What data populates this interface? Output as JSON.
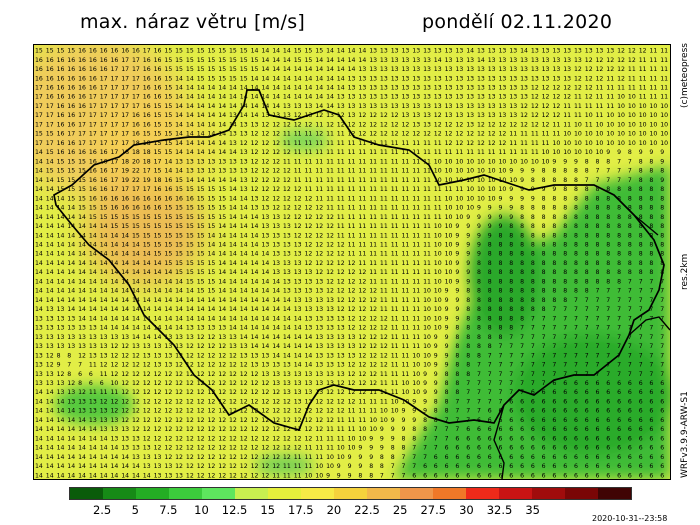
{
  "header": {
    "title": "max. náraz větru [m/s]",
    "date": "pondělí 02.11.2020"
  },
  "side_labels": {
    "copyright": "(c)meteopress",
    "resolution": "res.2km",
    "model": "WRFv3.9.9-ARW-S1"
  },
  "colorbar": {
    "colors": [
      "#0a5c0a",
      "#168a16",
      "#24ad24",
      "#3ccc3c",
      "#5ee65e",
      "#c8f050",
      "#e6f03c",
      "#f7ea46",
      "#f5d23c",
      "#f2b84a",
      "#f0964a",
      "#f07828",
      "#ee2a1a",
      "#c81414",
      "#a00c0c",
      "#7a0606",
      "#400404"
    ],
    "ticks": [
      "2.5",
      "5",
      "7.5",
      "10",
      "12.5",
      "15",
      "17.5",
      "20",
      "22.5",
      "25",
      "27.5",
      "30",
      "32.5",
      "35"
    ]
  },
  "run_timestamp": "2020-10-31--23:58",
  "map": {
    "field_colors": {
      "low": "#2db52d",
      "mid": "#e0ee44",
      "high": "#f2b860",
      "border": "#000000",
      "number": "#000000"
    },
    "grid_values_rows": [
      "15 15 15 15 16 16 16 16 16 16 17 16 15 15 15 15 15 15 15 15 14 14 14 14 15 15 15 14 14 14 14 13 13 13 13 13 13 13 13 13 14 13 13 13 13 14 13 13 13 13 13 13 13 13 12 12 12 11 11",
      "16 16 16 16 16 16 16 16 17 17 16 16 15 15 15 15 15 15 15 15 15 14 14 14 15 15 14 14 14 14 14 13 13 13 13 13 13 14 13 13 13 14 13 13 13 13 13 13 13 13 13 12 12 12 12 12 11 11 11",
      "16 16 16 16 16 16 16 17 17 17 16 16 15 15 15 15 15 15 15 15 15 14 14 14 14 14 14 14 14 14 13 13 13 13 13 13 13 13 13 13 13 13 13 13 13 13 13 13 13 13 12 12 12 12 12 11 11 11 11",
      "16 16 16 16 16 16 17 17 17 17 16 16 15 14 14 15 15 15 15 15 14 14 14 14 14 14 14 14 14 13 13 13 13 13 13 13 13 13 13 13 13 13 13 13 13 13 13 13 13 13 12 12 12 11 12 11 11 11 11",
      "17 16 16 16 16 16 17 17 17 17 16 16 15 14 14 14 14 14 14 14 14 14 14 14 14 14 14 14 14 13 13 13 13 13 13 13 13 13 13 13 13 13 13 13 13 13 12 12 12 12 12 12 11 11 11 11 11 11 11",
      "17 16 16 16 16 17 17 17 17 17 16 16 15 14 14 14 14 14 14 14 14 14 14 14 14 14 14 14 13 13 13 13 13 13 13 13 13 13 13 13 13 13 13 13 13 13 12 12 12 12 11 12 11 11 10 10 11 11 11",
      "17 17 16 16 16 17 17 17 17 17 16 15 15 14 14 14 14 14 14 14 14 14 14 13 13 13 14 14 13 13 13 13 13 13 13 13 13 13 13 13 13 13 13 13 13 12 12 12 12 11 11 11 11 11 10 10 10 10 10",
      "17 17 16 16 17 17 17 17 17 16 16 15 15 14 14 14 14 14 13 14 14 13 13 13 12 13 12 13 12 13 12 12 12 12 13 13 13 12 13 13 13 13 13 13 13 12 12 12 12 11 11 10 11 10 10 10 10 10 10",
      "17 17 16 16 17 17 17 17 17 16 16 15 15 14 14 14 14 14 14 13 13 12 12 12 12 12 11 12 12 12 12 12 12 12 12 13 13 12 12 12 13 12 12 12 12 12 12 12 11 11 10 11 10 10 10 10 10 10 10",
      "15 15 16 17 17 17 17 17 17 16 15 15 15 14 14 14 14 14 13 13 12 12 12 11 11 11 12 11 11 12 12 12 12 12 12 12 12 12 12 12 12 12 12 12 11 11 11 11 11 10 10 10 10 10 10 10 10 10 10",
      "17 17 16 16 17 17 17 17 17 18 18 15 15 14 14 14 14 14 13 12 12 12 12 11 11 11 11 11 11 11 11 11 11 11 11 11 11 11 12 12 12 12 12 12 11 11 11 11 10 10 10 10 10 10 10 10 10 10 10",
      "14 15 16 16 16 16 16 17 18 18 18 15 15 14 14 14 14 14 14 13 12 12 12 12 11 11 11 11 11 11 11 11 11 11 11 11 11 11 11 11 11 11 11 11 11 11 11 10 10 10 10 10 10 9 9 8 9 9 9",
      "14 14 15 15 15 16 16 17 18 20 18 17 14 13 13 13 13 13 13 13 12 12 12 11 11 11 11 11 11 11 11 11 11 11 11 11 11 10 10 10 10 10 10 10 10 10 10 10 9 9 9 8 8 8 7 7 8 8 9",
      "14 15 15 15 15 16 16 17 19 22 17 15 14 14 13 13 13 13 13 13 12 12 12 12 11 11 11 11 11 11 11 11 11 11 11 11 11 10 10 10 10 10 10 10 9 9 9 8 8 8 8 8 7 7 7 7 8 8 8",
      "14 14 15 15 15 16 16 17 19 22 19 18 16 15 14 14 14 14 14 13 12 12 12 12 11 11 11 11 11 11 11 11 11 11 11 11 11 10 10 10 10 10 10 10 10 9 8 8 8 8 8 7 7 7 7 7 8 8 9",
      "14 14 15 15 15 16 16 17 17 17 17 16 16 15 15 15 15 15 14 13 12 12 12 12 12 11 11 11 11 11 11 11 11 11 11 11 11 11 11 11 10 10 10 10 9 9 9 9 9 8 8 8 8 8 8 8 8 8 8",
      "14 14 14 15 15 16 16 16 16 16 16 16 16 16 16 15 15 15 14 14 13 12 12 12 12 12 11 11 11 11 11 11 11 11 11 11 11 11 10 10 10 10 10 9 9 9 9 8 8 8 8 8 8 8 8 8 8 8 8",
      "14 14 14 14 15 15 15 16 16 16 16 16 15 15 15 15 15 15 14 14 13 13 12 12 12 12 12 11 11 11 11 11 11 11 11 11 11 11 10 10 10 9 9 9 9 8 8 8 8 8 8 8 8 8 8 8 8 8 8",
      "14 14 14 14 14 15 15 15 15 15 15 15 15 15 15 15 15 15 14 14 14 13 13 12 12 12 12 12 11 11 11 11 11 11 11 11 11 11 10 10 9 9 9 9 9 8 8 8 8 8 8 8 8 8 8 8 8 8 8",
      "14 14 14 14 14 14 14 15 15 15 15 15 15 15 15 15 15 14 14 14 14 13 13 13 12 12 12 12 11 11 11 11 11 11 11 11 11 10 10 9 9 9 9 9 8 8 8 8 8 8 8 8 8 8 8 8 8 8 8",
      "14 14 14 14 14 14 14 14 14 15 15 15 15 15 15 15 14 14 14 14 14 13 13 13 12 12 12 12 11 11 11 11 11 11 11 11 11 10 10 9 9 9 9 8 8 8 8 8 8 8 8 8 8 8 8 8 8 8 8",
      "14 14 14 14 14 14 14 14 14 14 15 15 15 15 15 15 14 14 14 14 14 13 13 13 13 12 12 12 12 11 11 11 11 11 11 11 11 10 10 9 9 9 8 8 8 8 8 8 8 8 8 8 8 8 8 8 8 8 8",
      "14 14 14 14 14 14 14 14 14 14 14 15 15 15 15 15 14 14 14 14 14 14 13 13 13 12 12 12 12 11 11 11 11 11 11 11 11 10 10 9 9 9 8 8 8 8 8 8 8 8 8 8 8 8 8 8 8 8 8",
      "14 14 14 14 14 14 14 14 14 14 14 14 15 15 15 15 15 14 14 14 14 14 13 13 13 12 12 12 12 12 11 11 11 11 11 11 11 10 10 9 9 8 8 8 8 8 8 8 8 8 8 8 8 8 8 8 8 8 8",
      "14 14 14 14 14 14 14 14 14 14 14 14 14 15 15 15 15 14 14 14 14 14 13 13 13 13 12 12 12 12 12 11 11 11 11 11 11 10 10 9 9 8 8 8 8 8 8 8 8 8 8 8 8 8 8 8 8 8 8",
      "14 14 14 14 14 14 14 14 14 14 14 14 14 14 15 15 15 14 14 14 14 14 14 13 13 13 13 12 12 12 12 11 11 11 11 11 11 10 10 9 9 8 8 8 8 8 8 8 8 8 8 8 8 8 8 7 7 7 7",
      "14 14 14 14 14 14 14 14 14 14 14 14 14 14 14 15 15 14 14 14 14 14 14 13 13 13 13 12 12 12 12 12 11 11 11 11 10 10 9 9 8 8 8 8 8 8 8 8 8 8 8 8 7 7 7 7 7 7 7",
      "14 14 14 14 14 14 14 14 14 14 14 14 14 14 14 14 14 14 14 14 14 14 14 14 13 13 13 13 12 12 12 12 11 11 11 11 10 10 9 9 8 8 8 8 8 8 8 8 8 8 7 7 7 7 7 7 7 7 7",
      "14 13 13 14 14 14 14 14 14 14 14 14 14 14 14 14 14 14 14 14 14 14 14 14 13 13 13 13 12 12 12 12 11 11 11 11 10 10 9 9 8 8 8 8 8 8 8 8 7 7 7 7 7 7 7 7 7 7 7",
      "13 13 13 13 14 14 14 14 14 14 14 14 14 14 14 14 14 14 14 14 14 14 14 14 14 13 13 13 13 12 12 12 12 11 11 11 10 10 9 9 8 8 8 8 8 8 7 7 7 7 7 7 7 7 7 7 7 7 7",
      "13 13 13 13 13 13 14 14 14 14 14 14 14 14 13 13 13 13 14 14 14 14 14 14 14 13 13 13 13 12 12 12 12 11 11 11 10 10 9 8 8 8 8 8 8 7 7 7 7 7 7 7 7 7 7 7 7 7 7",
      "13 13 13 13 13 13 13 13 13 14 14 14 13 13 13 12 12 13 13 14 14 14 14 14 14 14 13 13 13 13 12 12 12 11 11 11 10 9 9 8 8 8 8 8 7 7 7 7 7 7 7 7 7 7 7 7 7 7 7",
      "13 13 13 13 13 13 13 12 12 13 13 13 13 13 12 12 12 12 13 13 14 14 14 14 14 14 13 13 13 13 12 12 12 11 11 11 10 9 9 8 8 8 8 7 7 7 7 7 7 7 7 7 7 7 7 7 7 7 7",
      "13 12 8 8 12 13 13 12 12 12 13 13 13 13 12 12 12 12 12 13 13 13 14 14 14 14 13 13 13 13 12 12 12 11 11 10 10 9 9 8 8 8 7 7 7 7 7 7 7 7 7 7 7 7 7 7 7 7 7",
      "13 12 9 7 7 11 12 12 12 12 12 13 13 12 12 12 12 12 12 12 13 13 13 13 14 14 13 13 13 12 12 12 12 11 11 10 10 9 9 8 8 7 7 7 7 7 7 7 7 7 7 7 7 7 7 7 7 7 7",
      "13 13 12 8 6 6 11 12 12 12 12 12 12 12 12 12 12 12 12 12 12 13 13 13 13 13 13 13 13 12 12 12 11 11 11 10 9 9 8 8 8 7 7 7 7 7 7 7 7 7 7 7 7 7 7 7 7 7 7",
      "13 13 13 12 8 6 6 10 12 12 12 12 12 12 12 12 12 12 12 12 12 12 13 13 13 13 13 13 12 12 12 12 11 11 10 10 9 9 8 8 7 7 7 7 7 7 7 7 6 6 6 6 6 6 6 6 6 6 6",
      "14 14 13 13 12 11 11 11 12 12 12 12 12 12 12 12 12 12 12 12 12 12 12 13 13 13 13 12 12 12 12 11 11 11 10 10 9 9 8 8 7 7 7 7 7 7 6 6 6 6 6 6 6 6 6 6 6 6 6",
      "14 14 14 13 13 13 12 12 12 12 12 12 12 12 12 12 12 12 12 12 12 12 12 12 13 13 12 12 12 12 11 11 11 10 10 9 9 8 8 7 7 7 7 7 6 6 6 6 6 6 6 6 6 6 6 6 6 6 6",
      "14 14 14 14 13 13 13 12 12 12 12 12 12 12 12 12 12 12 12 12 12 12 12 12 12 12 12 12 12 11 11 11 10 10 9 9 9 8 8 7 7 7 6 6 6 6 6 6 6 6 6 6 6 6 6 6 6 6 6",
      "14 14 14 14 14 13 13 13 12 12 12 12 12 12 12 12 12 12 12 12 12 12 12 12 12 12 12 12 11 11 11 10 10 9 9 9 8 8 7 7 7 6 6 6 6 6 6 6 6 6 6 6 6 6 6 6 6 6 6",
      "14 14 14 14 14 14 13 13 13 12 12 12 12 12 12 12 12 12 12 12 12 12 12 12 12 12 12 11 11 11 10 10 9 9 9 8 8 7 7 7 6 6 6 6 6 6 6 6 6 6 6 6 6 6 6 6 6 6 6",
      "14 14 14 14 14 14 14 13 13 13 12 12 12 12 12 12 12 12 12 12 12 12 12 12 12 12 11 11 11 10 10 9 9 9 8 8 7 7 7 6 6 6 6 6 6 6 6 6 6 6 6 6 6 6 6 6 6 6 6",
      "14 14 14 14 14 14 14 14 13 13 13 12 12 12 12 12 12 12 12 12 12 12 12 12 12 11 11 11 10 10 9 9 9 8 8 7 7 7 6 6 6 6 6 6 6 6 6 6 6 6 6 6 6 6 6 6 6 6 6",
      "14 14 14 14 14 14 14 14 14 13 13 13 12 12 12 12 12 12 12 12 12 12 12 12 11 11 11 10 10 9 9 9 8 8 7 7 7 6 6 6 6 6 6 6 6 6 6 6 6 6 6 6 6 6 6 6 6 6 6",
      "14 14 14 14 14 14 14 14 14 14 13 13 13 12 12 12 12 12 12 12 12 12 12 11 11 11 10 10 9 9 9 8 8 7 7 7 6 6 6 6 6 6 6 6 6 6 6 6 6 6 6 6 6 6 6 6 6 6 6",
      "14 14 14 14 14 14 14 14 14 14 14 13 13 13 12 12 12 12 12 12 12 12 11 11 11 10 10 9 9 9 8 8 7 7 7 6 6 6 6 6 6 6 6 6 6 6 6 6 6 6 6 6 6 6 6 6 6 6 6"
    ]
  }
}
